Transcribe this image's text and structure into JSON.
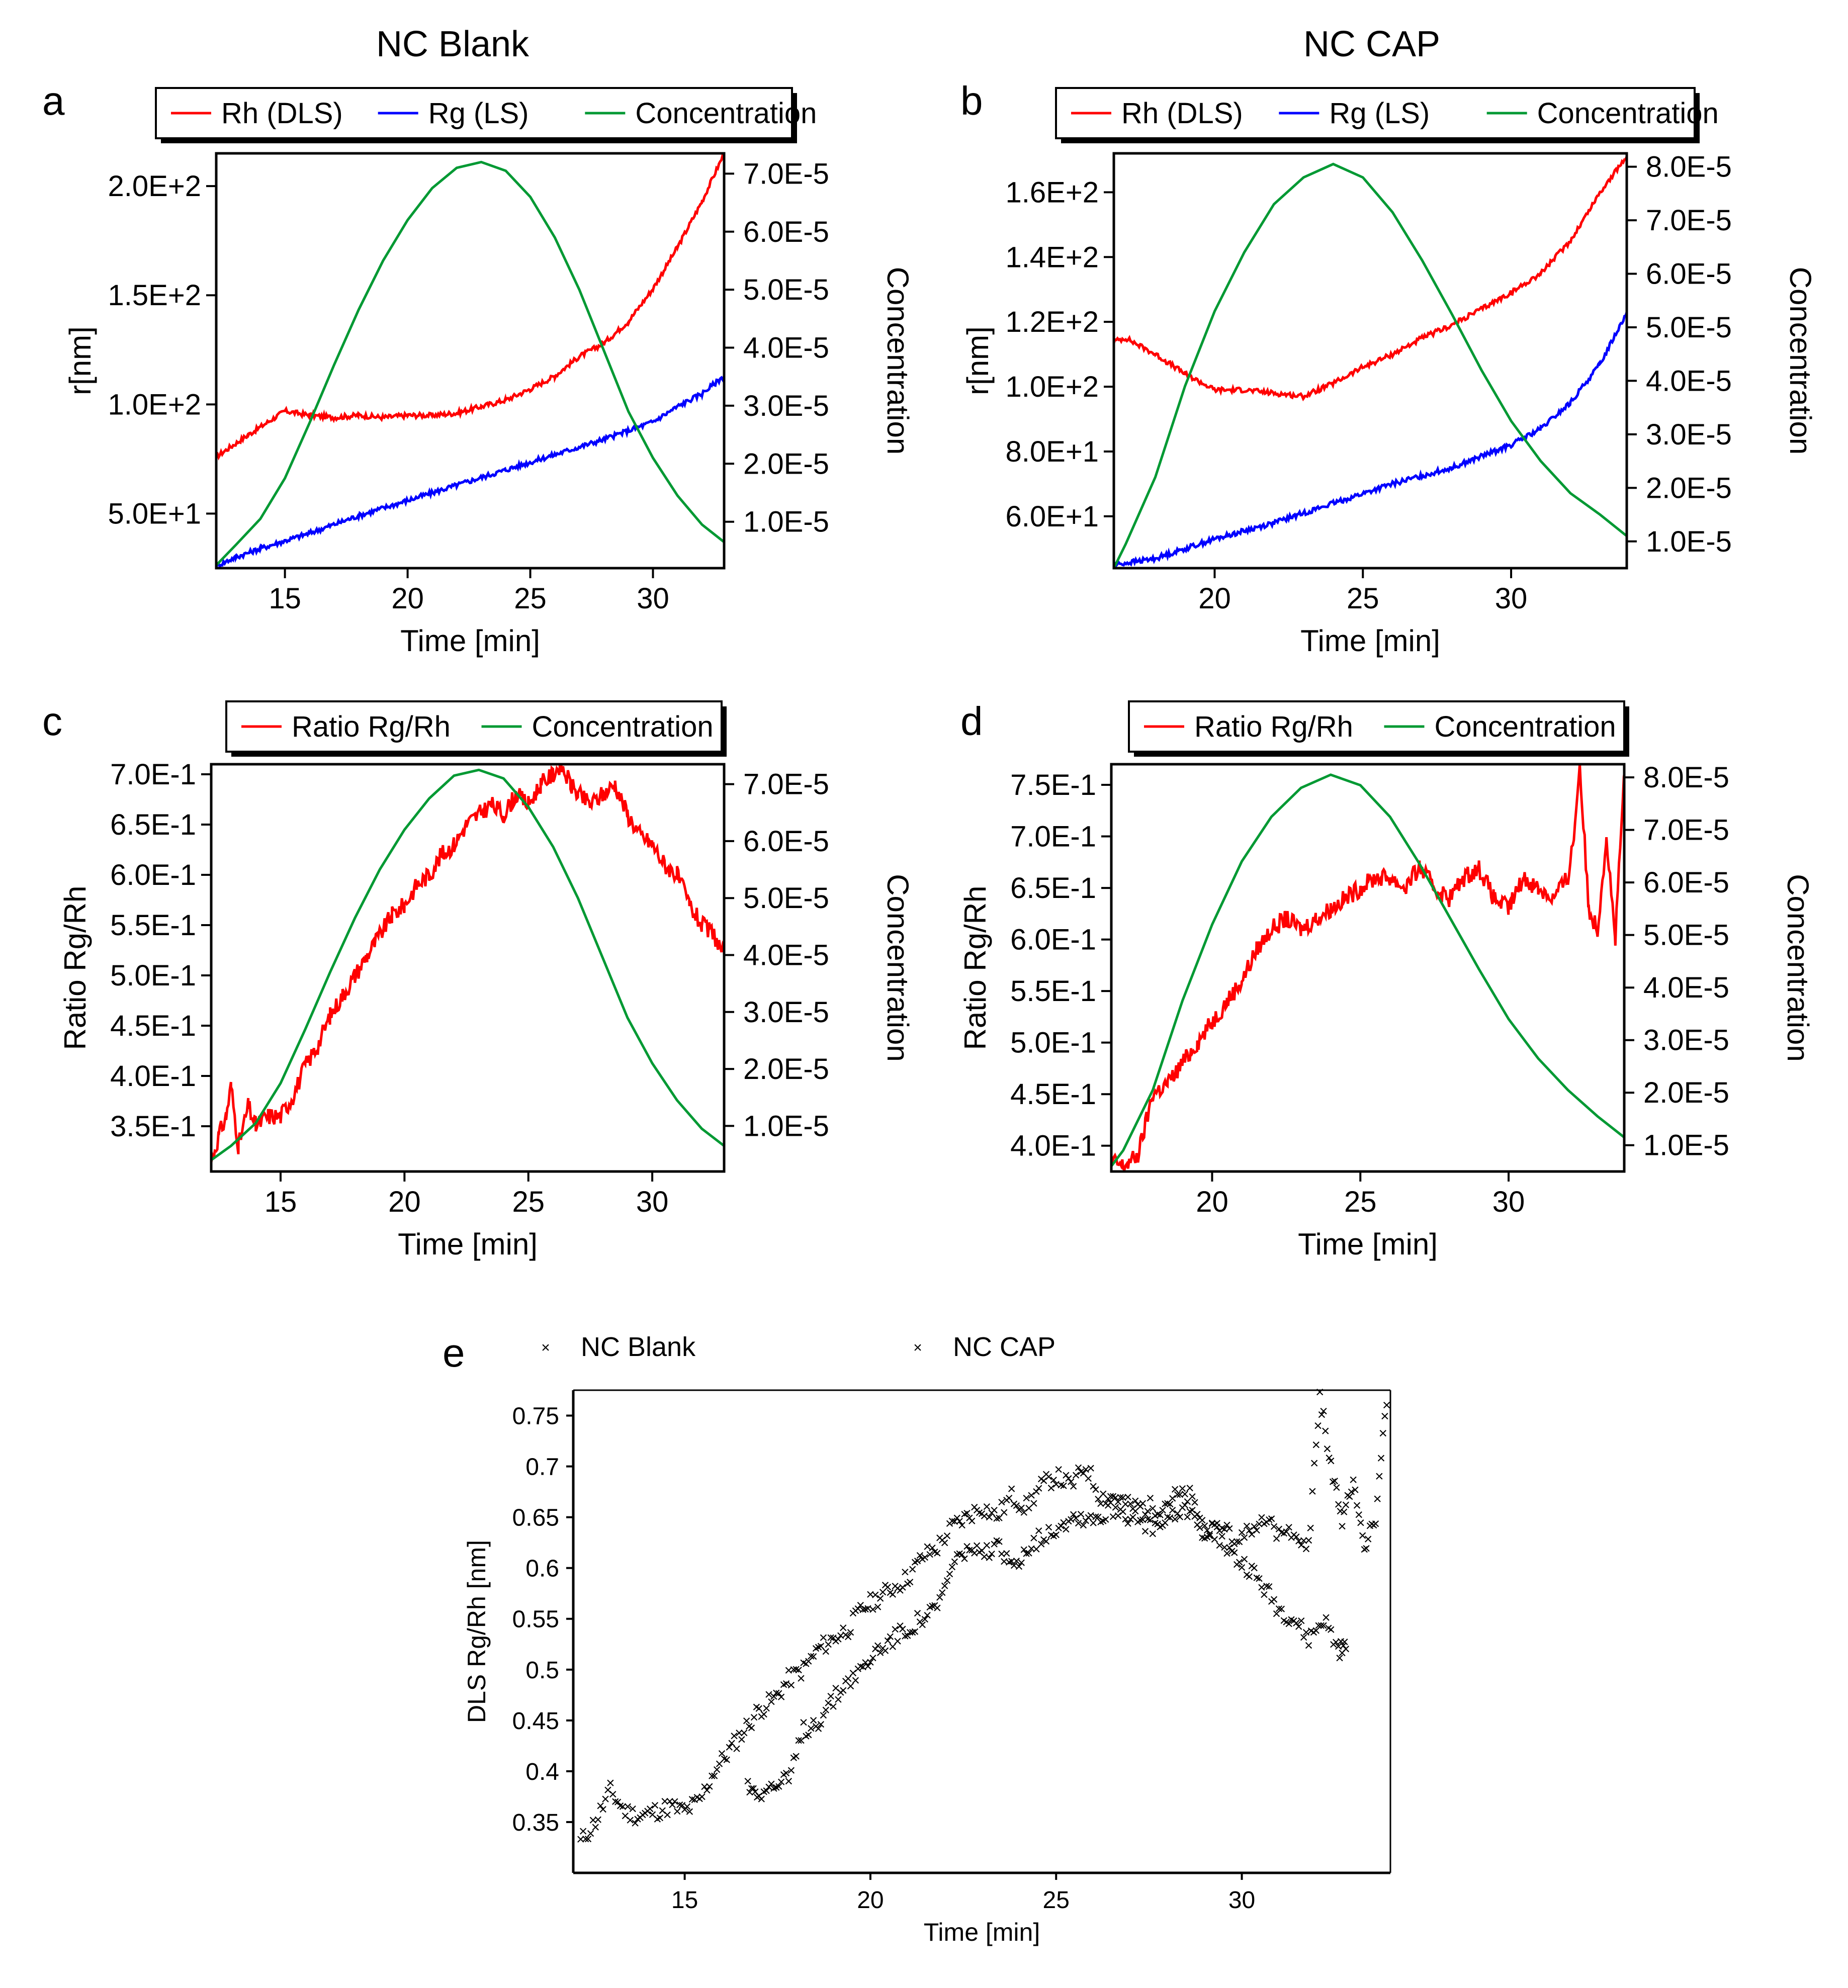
{
  "figure": {
    "col_titles": [
      "NC Blank",
      "NC CAP"
    ],
    "panel_letters": [
      "a",
      "b",
      "c",
      "d",
      "e"
    ]
  },
  "colors": {
    "rh": "#ff0000",
    "rg": "#0000ff",
    "concentration": "#009933",
    "ratio": "#ff0000",
    "blank_points": "#000000",
    "cap_points": "#ff2020"
  },
  "chart_data": [
    {
      "id": "a",
      "type": "line",
      "title": "NC Blank",
      "xlabel": "Time [min]",
      "ylabel": "r[nm]",
      "y2label": "Concentration",
      "xlim": [
        12.2,
        32.9
      ],
      "ylim": [
        25,
        215
      ],
      "y2lim": [
        2e-06,
        7.35e-05
      ],
      "x_ticks": [
        15,
        20,
        25,
        30
      ],
      "x_tick_labels": [
        "15",
        "20",
        "25",
        "30"
      ],
      "y_ticks": [
        50,
        100,
        150,
        200
      ],
      "y_tick_labels": [
        "5.0E+1",
        "1.0E+2",
        "1.5E+2",
        "2.0E+2"
      ],
      "y2_ticks": [
        1e-05,
        2e-05,
        3e-05,
        4e-05,
        5e-05,
        6e-05,
        7e-05
      ],
      "y2_tick_labels": [
        "1.0E-5",
        "2.0E-5",
        "3.0E-5",
        "4.0E-5",
        "5.0E-5",
        "6.0E-5",
        "7.0E-5"
      ],
      "legend": [
        "Rh (DLS)",
        "Rg (LS)",
        "Concentration"
      ],
      "series": [
        {
          "name": "Rh (DLS)",
          "color": "#ff0000",
          "axis": "left",
          "x": [
            12.2,
            13.5,
            15,
            16,
            17,
            18,
            19,
            20,
            21,
            22,
            23,
            24,
            25,
            26,
            27,
            28,
            29,
            30,
            31,
            32,
            32.9
          ],
          "y": [
            76,
            86,
            97,
            95,
            94,
            95,
            94,
            95,
            95,
            96,
            99,
            102,
            107,
            113,
            122,
            128,
            138,
            153,
            172,
            193,
            215
          ]
        },
        {
          "name": "Rg (LS)",
          "color": "#0000ff",
          "axis": "left",
          "x": [
            12.2,
            13,
            14,
            16,
            18,
            20,
            22,
            24,
            26,
            28,
            30,
            31,
            32,
            32.9
          ],
          "y": [
            26,
            30,
            34,
            41,
            49,
            56,
            63,
            70,
            77,
            84,
            92,
            99,
            105,
            113
          ]
        },
        {
          "name": "Concentration",
          "color": "#009933",
          "axis": "right",
          "x": [
            12.2,
            13,
            14,
            15,
            16,
            17,
            18,
            19,
            20,
            21,
            22,
            23,
            24,
            25,
            26,
            27,
            28,
            29,
            30,
            31,
            32,
            32.9
          ],
          "y": [
            2.5e-06,
            6e-06,
            1.05e-05,
            1.75e-05,
            2.7e-05,
            3.7e-05,
            4.65e-05,
            5.5e-05,
            6.2e-05,
            6.75e-05,
            7.1e-05,
            7.2e-05,
            7.05e-05,
            6.6e-05,
            5.9e-05,
            5e-05,
            3.95e-05,
            2.9e-05,
            2.1e-05,
            1.45e-05,
            9.5e-06,
            6.5e-06
          ]
        }
      ]
    },
    {
      "id": "b",
      "type": "line",
      "title": "NC CAP",
      "xlabel": "Time [min]",
      "ylabel": "r[nm]",
      "y2label": "Concentration",
      "xlim": [
        16.6,
        33.9
      ],
      "ylim": [
        44,
        172
      ],
      "y2lim": [
        5e-06,
        8.25e-05
      ],
      "x_ticks": [
        20,
        25,
        30
      ],
      "x_tick_labels": [
        "20",
        "25",
        "30"
      ],
      "y_ticks": [
        60,
        80,
        100,
        120,
        140,
        160
      ],
      "y_tick_labels": [
        "6.0E+1",
        "8.0E+1",
        "1.0E+2",
        "1.2E+2",
        "1.4E+2",
        "1.6E+2"
      ],
      "y2_ticks": [
        1e-05,
        2e-05,
        3e-05,
        4e-05,
        5e-05,
        6e-05,
        7e-05,
        8e-05
      ],
      "y2_tick_labels": [
        "1.0E-5",
        "2.0E-5",
        "3.0E-5",
        "4.0E-5",
        "5.0E-5",
        "6.0E-5",
        "7.0E-5",
        "8.0E-5"
      ],
      "legend": [
        "Rh (DLS)",
        "Rg (LS)",
        "Concentration"
      ],
      "series": [
        {
          "name": "Rh (DLS)",
          "color": "#ff0000",
          "axis": "left",
          "x": [
            16.6,
            17,
            18,
            19,
            20,
            21,
            22,
            23,
            24,
            25,
            26,
            27,
            28,
            29,
            30,
            31,
            32,
            33,
            33.9
          ],
          "y": [
            114,
            115,
            110,
            104,
            99,
            99,
            98,
            97,
            101,
            106,
            110,
            115,
            119,
            124,
            129,
            135,
            145,
            160,
            171
          ]
        },
        {
          "name": "Rg (LS)",
          "color": "#0000ff",
          "axis": "left",
          "x": [
            16.6,
            18,
            20,
            22,
            24,
            26,
            28,
            30,
            31,
            32,
            33,
            33.9
          ],
          "y": [
            45,
            47,
            53,
            58,
            64,
            70,
            75,
            82,
            87,
            95,
            107,
            123
          ]
        },
        {
          "name": "Concentration",
          "color": "#009933",
          "axis": "right",
          "x": [
            16.6,
            17,
            18,
            19,
            20,
            21,
            22,
            23,
            24,
            25,
            26,
            27,
            28,
            29,
            30,
            31,
            32,
            33,
            33.9
          ],
          "y": [
            5e-06,
            9.5e-06,
            2.2e-05,
            3.9e-05,
            5.3e-05,
            6.4e-05,
            7.3e-05,
            7.8e-05,
            8.05e-05,
            7.8e-05,
            7.15e-05,
            6.25e-05,
            5.25e-05,
            4.2e-05,
            3.25e-05,
            2.5e-05,
            1.9e-05,
            1.5e-05,
            1.1e-05
          ]
        }
      ]
    },
    {
      "id": "c",
      "type": "line",
      "title": "NC Blank",
      "xlabel": "Time [min]",
      "ylabel": "Ratio Rg/Rh",
      "y2label": "Concentration",
      "xlim": [
        12.2,
        32.9
      ],
      "ylim": [
        0.305,
        0.71
      ],
      "y2lim": [
        2e-06,
        7.35e-05
      ],
      "x_ticks": [
        15,
        20,
        25,
        30
      ],
      "x_tick_labels": [
        "15",
        "20",
        "25",
        "30"
      ],
      "y_ticks": [
        0.35,
        0.4,
        0.45,
        0.5,
        0.55,
        0.6,
        0.65,
        0.7
      ],
      "y_tick_labels": [
        "3.5E-1",
        "4.0E-1",
        "4.5E-1",
        "5.0E-1",
        "5.5E-1",
        "6.0E-1",
        "6.5E-1",
        "7.0E-1"
      ],
      "y2_ticks": [
        1e-05,
        2e-05,
        3e-05,
        4e-05,
        5e-05,
        6e-05,
        7e-05
      ],
      "y2_tick_labels": [
        "1.0E-5",
        "2.0E-5",
        "3.0E-5",
        "4.0E-5",
        "5.0E-5",
        "6.0E-5",
        "7.0E-5"
      ],
      "legend": [
        "Ratio Rg/Rh",
        "Concentration"
      ],
      "series": [
        {
          "name": "Ratio Rg/Rh",
          "color": "#ff0000",
          "axis": "left",
          "x": [
            12.2,
            12.5,
            12.8,
            13,
            13.3,
            13.7,
            14,
            14.5,
            15,
            15.5,
            16,
            16.5,
            17,
            17.5,
            18,
            18.5,
            19,
            19.5,
            20,
            20.5,
            21,
            21.5,
            22,
            22.5,
            23,
            23.5,
            24,
            24.5,
            25,
            25.5,
            26,
            26.3,
            26.7,
            27,
            27.5,
            28,
            28.5,
            29,
            29.5,
            30,
            30.5,
            31,
            31.5,
            32,
            32.5,
            32.9
          ],
          "y": [
            0.315,
            0.34,
            0.36,
            0.39,
            0.33,
            0.37,
            0.35,
            0.36,
            0.36,
            0.38,
            0.41,
            0.43,
            0.46,
            0.48,
            0.5,
            0.52,
            0.54,
            0.56,
            0.57,
            0.59,
            0.6,
            0.62,
            0.63,
            0.65,
            0.66,
            0.67,
            0.66,
            0.68,
            0.67,
            0.69,
            0.7,
            0.71,
            0.69,
            0.68,
            0.67,
            0.68,
            0.69,
            0.66,
            0.64,
            0.63,
            0.61,
            0.6,
            0.57,
            0.55,
            0.54,
            0.52
          ]
        },
        {
          "name": "Concentration",
          "color": "#009933",
          "axis": "right",
          "x": [
            12.2,
            13,
            14,
            15,
            16,
            17,
            18,
            19,
            20,
            21,
            22,
            23,
            24,
            25,
            26,
            27,
            28,
            29,
            30,
            31,
            32,
            32.9
          ],
          "y": [
            4e-06,
            6.5e-06,
            1.05e-05,
            1.75e-05,
            2.7e-05,
            3.7e-05,
            4.65e-05,
            5.5e-05,
            6.2e-05,
            6.75e-05,
            7.15e-05,
            7.25e-05,
            7.1e-05,
            6.6e-05,
            5.9e-05,
            5e-05,
            3.95e-05,
            2.9e-05,
            2.1e-05,
            1.45e-05,
            9.5e-06,
            6.5e-06
          ]
        }
      ]
    },
    {
      "id": "d",
      "type": "line",
      "title": "NC CAP",
      "xlabel": "Time [min]",
      "ylabel": "Ratio Rg/Rh",
      "y2label": "Concentration",
      "xlim": [
        16.6,
        33.9
      ],
      "ylim": [
        0.375,
        0.77
      ],
      "y2lim": [
        5e-06,
        8.25e-05
      ],
      "x_ticks": [
        20,
        25,
        30
      ],
      "x_tick_labels": [
        "20",
        "25",
        "30"
      ],
      "y_ticks": [
        0.4,
        0.45,
        0.5,
        0.55,
        0.6,
        0.65,
        0.7,
        0.75
      ],
      "y_tick_labels": [
        "4.0E-1",
        "4.5E-1",
        "5.0E-1",
        "5.5E-1",
        "6.0E-1",
        "6.5E-1",
        "7.0E-1",
        "7.5E-1"
      ],
      "y2_ticks": [
        1e-05,
        2e-05,
        3e-05,
        4e-05,
        5e-05,
        6e-05,
        7e-05,
        8e-05
      ],
      "y2_tick_labels": [
        "1.0E-5",
        "2.0E-5",
        "3.0E-5",
        "4.0E-5",
        "5.0E-5",
        "6.0E-5",
        "7.0E-5",
        "8.0E-5"
      ],
      "legend": [
        "Ratio Rg/Rh",
        "Concentration"
      ],
      "series": [
        {
          "name": "Ratio Rg/Rh",
          "color": "#ff0000",
          "axis": "left",
          "x": [
            16.6,
            17,
            17.5,
            18,
            18.5,
            19,
            19.5,
            20,
            20.5,
            21,
            21.5,
            22,
            22.5,
            23,
            23.5,
            24,
            24.5,
            25,
            25.5,
            26,
            26.5,
            27,
            27.5,
            28,
            28.5,
            29,
            29.5,
            30,
            30.5,
            31,
            31.5,
            32,
            32.2,
            32.4,
            32.7,
            33,
            33.3,
            33.6,
            33.9
          ],
          "y": [
            0.385,
            0.38,
            0.39,
            0.45,
            0.46,
            0.48,
            0.5,
            0.52,
            0.54,
            0.56,
            0.59,
            0.61,
            0.62,
            0.61,
            0.62,
            0.63,
            0.64,
            0.65,
            0.66,
            0.66,
            0.65,
            0.67,
            0.65,
            0.64,
            0.66,
            0.67,
            0.64,
            0.63,
            0.66,
            0.65,
            0.64,
            0.66,
            0.7,
            0.77,
            0.63,
            0.61,
            0.7,
            0.6,
            0.76
          ]
        },
        {
          "name": "Concentration",
          "color": "#009933",
          "axis": "right",
          "x": [
            16.6,
            17,
            18,
            19,
            20,
            21,
            22,
            23,
            24,
            25,
            26,
            27,
            28,
            29,
            30,
            31,
            32,
            33,
            33.9
          ],
          "y": [
            6e-06,
            9e-06,
            2.05e-05,
            3.75e-05,
            5.2e-05,
            6.4e-05,
            7.25e-05,
            7.8e-05,
            8.05e-05,
            7.85e-05,
            7.25e-05,
            6.35e-05,
            5.35e-05,
            4.35e-05,
            3.4e-05,
            2.65e-05,
            2.05e-05,
            1.55e-05,
            1.15e-05
          ]
        }
      ]
    },
    {
      "id": "e",
      "type": "scatter",
      "xlabel": "Time [min]",
      "ylabel": "DLS Rg/Rh [nm]",
      "xlim": [
        12,
        34
      ],
      "ylim": [
        0.3,
        0.775
      ],
      "x_ticks": [
        15,
        20,
        25,
        30
      ],
      "x_tick_labels": [
        "15",
        "20",
        "25",
        "30"
      ],
      "y_ticks": [
        0.35,
        0.4,
        0.45,
        0.5,
        0.55,
        0.6,
        0.65,
        0.7,
        0.75
      ],
      "y_tick_labels": [
        "0.35",
        "0.4",
        "0.45",
        "0.5",
        "0.55",
        "0.6",
        "0.65",
        "0.7",
        "0.75"
      ],
      "legend": [
        "NC Blank",
        "NC CAP"
      ],
      "marker": "×",
      "series": [
        {
          "name": "NC Blank",
          "color": "#000000",
          "x": [
            12.2,
            12.6,
            13,
            13.4,
            13.8,
            14.2,
            14.6,
            15,
            15.4,
            15.8,
            16.2,
            16.6,
            17,
            17.4,
            17.8,
            18.2,
            18.6,
            19,
            19.4,
            19.8,
            20.2,
            20.6,
            21,
            21.4,
            21.8,
            22.2,
            22.6,
            23,
            23.4,
            23.8,
            24.2,
            24.6,
            25,
            25.4,
            25.8,
            26.2,
            26.6,
            27,
            27.4,
            27.8,
            28.2,
            28.6,
            29,
            29.4,
            29.8,
            30.2,
            30.6,
            31,
            31.4,
            31.8,
            32.2,
            32.6,
            32.8
          ],
          "y": [
            0.33,
            0.35,
            0.38,
            0.36,
            0.355,
            0.36,
            0.365,
            0.36,
            0.37,
            0.4,
            0.42,
            0.44,
            0.46,
            0.47,
            0.49,
            0.5,
            0.52,
            0.53,
            0.54,
            0.56,
            0.57,
            0.58,
            0.59,
            0.61,
            0.62,
            0.64,
            0.65,
            0.66,
            0.65,
            0.67,
            0.66,
            0.68,
            0.69,
            0.68,
            0.7,
            0.67,
            0.67,
            0.66,
            0.66,
            0.66,
            0.67,
            0.67,
            0.64,
            0.63,
            0.61,
            0.6,
            0.58,
            0.56,
            0.55,
            0.53,
            0.55,
            0.52,
            0.52
          ]
        },
        {
          "name": "NC CAP",
          "color": "#ff2020",
          "x": [
            16.7,
            17,
            17.4,
            17.8,
            18.2,
            18.6,
            19,
            19.4,
            19.8,
            20.2,
            20.6,
            21,
            21.4,
            21.8,
            22.2,
            22.6,
            23,
            23.4,
            23.8,
            24.2,
            24.6,
            25,
            25.4,
            25.8,
            26.2,
            26.6,
            27,
            27.4,
            27.8,
            28.2,
            28.6,
            29,
            29.4,
            29.8,
            30.2,
            30.6,
            31,
            31.4,
            31.8,
            32.1,
            32.4,
            32.7,
            33,
            33.3,
            33.6,
            33.9
          ],
          "y": [
            0.385,
            0.38,
            0.385,
            0.39,
            0.44,
            0.45,
            0.47,
            0.49,
            0.5,
            0.52,
            0.53,
            0.54,
            0.55,
            0.56,
            0.6,
            0.62,
            0.61,
            0.62,
            0.6,
            0.62,
            0.63,
            0.64,
            0.65,
            0.65,
            0.65,
            0.66,
            0.65,
            0.64,
            0.64,
            0.65,
            0.66,
            0.63,
            0.64,
            0.63,
            0.64,
            0.65,
            0.63,
            0.64,
            0.62,
            0.77,
            0.7,
            0.64,
            0.69,
            0.62,
            0.65,
            0.76
          ]
        }
      ]
    }
  ]
}
